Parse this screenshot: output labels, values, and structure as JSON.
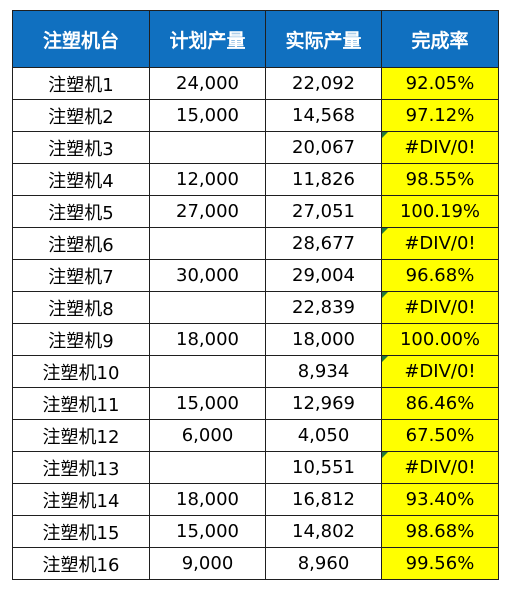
{
  "table": {
    "headers": [
      "注塑机台",
      "计划产量",
      "实际产量",
      "完成率"
    ],
    "colors": {
      "header_bg": "#1070c0",
      "header_text": "#ffffff",
      "rate_bg": "#ffff00",
      "error_marker": "#1f7a3a"
    },
    "rows": [
      {
        "machine": "注塑机1",
        "plan": "24,000",
        "actual": "22,092",
        "rate": "92.05%",
        "error": false
      },
      {
        "machine": "注塑机2",
        "plan": "15,000",
        "actual": "14,568",
        "rate": "97.12%",
        "error": false
      },
      {
        "machine": "注塑机3",
        "plan": "",
        "actual": "20,067",
        "rate": "#DIV/0!",
        "error": true
      },
      {
        "machine": "注塑机4",
        "plan": "12,000",
        "actual": "11,826",
        "rate": "98.55%",
        "error": false
      },
      {
        "machine": "注塑机5",
        "plan": "27,000",
        "actual": "27,051",
        "rate": "100.19%",
        "error": false
      },
      {
        "machine": "注塑机6",
        "plan": "",
        "actual": "28,677",
        "rate": "#DIV/0!",
        "error": true
      },
      {
        "machine": "注塑机7",
        "plan": "30,000",
        "actual": "29,004",
        "rate": "96.68%",
        "error": false
      },
      {
        "machine": "注塑机8",
        "plan": "",
        "actual": "22,839",
        "rate": "#DIV/0!",
        "error": true
      },
      {
        "machine": "注塑机9",
        "plan": "18,000",
        "actual": "18,000",
        "rate": "100.00%",
        "error": false
      },
      {
        "machine": "注塑机10",
        "plan": "",
        "actual": "8,934",
        "rate": "#DIV/0!",
        "error": true
      },
      {
        "machine": "注塑机11",
        "plan": "15,000",
        "actual": "12,969",
        "rate": "86.46%",
        "error": false
      },
      {
        "machine": "注塑机12",
        "plan": "6,000",
        "actual": "4,050",
        "rate": "67.50%",
        "error": false
      },
      {
        "machine": "注塑机13",
        "plan": "",
        "actual": "10,551",
        "rate": "#DIV/0!",
        "error": true
      },
      {
        "machine": "注塑机14",
        "plan": "18,000",
        "actual": "16,812",
        "rate": "93.40%",
        "error": false
      },
      {
        "machine": "注塑机15",
        "plan": "15,000",
        "actual": "14,802",
        "rate": "98.68%",
        "error": false
      },
      {
        "machine": "注塑机16",
        "plan": "9,000",
        "actual": "8,960",
        "rate": "99.56%",
        "error": false
      }
    ]
  }
}
